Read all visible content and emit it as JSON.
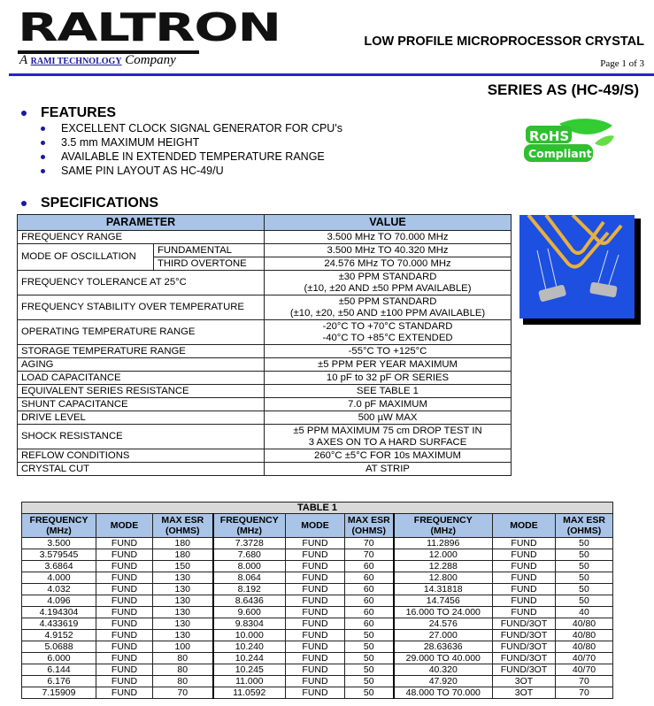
{
  "header": {
    "logo_text": "RALTRON",
    "tagline_prefix": "A",
    "tagline_brand": "RAMI TECHNOLOGY",
    "tagline_suffix": "Company",
    "doc_title": "LOW PROFILE MICROPROCESSOR CRYSTAL",
    "page": "Page 1 of 3",
    "series": "SERIES AS (HC-49/S)"
  },
  "colors": {
    "rule": "#2424c8",
    "table_header": "#a9c4e6",
    "table_title": "#d9d9d9",
    "rohs_green": "#33cc33"
  },
  "features": {
    "heading": "FEATURES",
    "items": [
      "EXCELLENT CLOCK SIGNAL GENERATOR FOR CPU's",
      "3.5 mm MAXIMUM HEIGHT",
      "AVAILABLE IN EXTENDED TEMPERATURE RANGE",
      "SAME PIN LAYOUT AS HC-49/U"
    ]
  },
  "rohs": {
    "line1": "RoHS",
    "line2": "Compliant"
  },
  "specifications": {
    "heading": "SPECIFICATIONS",
    "col_parameter": "PARAMETER",
    "col_value": "VALUE",
    "frequency_range": {
      "label": "FREQUENCY RANGE",
      "value": "3.500 MHz TO 70.000 MHz"
    },
    "mode": {
      "label": "MODE OF OSCILLATION",
      "fund_label": "FUNDAMENTAL",
      "fund_value": "3.500 MHz TO 40.320 MHz",
      "ot_label": "THIRD OVERTONE",
      "ot_value": "24.576 MHz TO 70.000 MHz"
    },
    "rows": [
      {
        "label": "FREQUENCY TOLERANCE AT 25°C",
        "value": [
          "±30 PPM STANDARD",
          "(±10, ±20 AND ±50 PPM AVAILABLE)"
        ]
      },
      {
        "label": "FREQUENCY STABILITY OVER TEMPERATURE",
        "value": [
          "±50 PPM STANDARD",
          "(±10, ±20, ±50 AND ±100 PPM AVAILABLE)"
        ]
      },
      {
        "label": "OPERATING TEMPERATURE RANGE",
        "value": [
          "-20°C TO +70°C STANDARD",
          "-40°C TO +85°C EXTENDED"
        ]
      },
      {
        "label": "STORAGE TEMPERATURE RANGE",
        "value": [
          "-55°C TO +125°C"
        ]
      },
      {
        "label": "AGING",
        "value": [
          "±5 PPM PER YEAR MAXIMUM"
        ]
      },
      {
        "label": "LOAD CAPACITANCE",
        "value": [
          "10 pF to 32 pF OR SERIES"
        ]
      },
      {
        "label": "EQUIVALENT SERIES RESISTANCE",
        "value": [
          "SEE TABLE 1"
        ]
      },
      {
        "label": "SHUNT CAPACITANCE",
        "value": [
          "7.0 pF MAXIMUM"
        ]
      },
      {
        "label": "DRIVE LEVEL",
        "value": [
          "500 µW MAX"
        ]
      },
      {
        "label": "SHOCK RESISTANCE",
        "value": [
          "±5 PPM MAXIMUM 75 cm DROP TEST IN",
          "3 AXES ON TO A HARD SURFACE"
        ]
      },
      {
        "label": "REFLOW CONDITIONS",
        "value": [
          "260°C ±5°C FOR 10s MAXIMUM"
        ]
      },
      {
        "label": "CRYSTAL CUT",
        "value": [
          "AT STRIP"
        ]
      }
    ]
  },
  "table1": {
    "title": "TABLE 1",
    "headers": [
      [
        "FREQUENCY",
        "(MHz)"
      ],
      [
        "MODE"
      ],
      [
        "MAX ESR",
        "(OHMS)"
      ],
      [
        "FREQUENCY",
        "(MHz)"
      ],
      [
        "MODE"
      ],
      [
        "MAX ESR",
        "(OHMS)"
      ],
      [
        "FREQUENCY",
        "(MHz)"
      ],
      [
        "MODE"
      ],
      [
        "MAX ESR",
        "(OHMS)"
      ]
    ],
    "rows": [
      [
        "3.500",
        "FUND",
        "180",
        "7.3728",
        "FUND",
        "70",
        "11.2896",
        "FUND",
        "50"
      ],
      [
        "3.579545",
        "FUND",
        "180",
        "7.680",
        "FUND",
        "70",
        "12.000",
        "FUND",
        "50"
      ],
      [
        "3.6864",
        "FUND",
        "150",
        "8.000",
        "FUND",
        "60",
        "12.288",
        "FUND",
        "50"
      ],
      [
        "4.000",
        "FUND",
        "130",
        "8.064",
        "FUND",
        "60",
        "12.800",
        "FUND",
        "50"
      ],
      [
        "4.032",
        "FUND",
        "130",
        "8.192",
        "FUND",
        "60",
        "14.31818",
        "FUND",
        "50"
      ],
      [
        "4.096",
        "FUND",
        "130",
        "8.6436",
        "FUND",
        "60",
        "14.7456",
        "FUND",
        "50"
      ],
      [
        "4.194304",
        "FUND",
        "130",
        "9.600",
        "FUND",
        "60",
        "16.000 TO 24.000",
        "FUND",
        "40"
      ],
      [
        "4.433619",
        "FUND",
        "130",
        "9.8304",
        "FUND",
        "60",
        "24.576",
        "FUND/3OT",
        "40/80"
      ],
      [
        "4.9152",
        "FUND",
        "130",
        "10.000",
        "FUND",
        "50",
        "27.000",
        "FUND/3OT",
        "40/80"
      ],
      [
        "5.0688",
        "FUND",
        "100",
        "10.240",
        "FUND",
        "50",
        "28.63636",
        "FUND/3OT",
        "40/80"
      ],
      [
        "6.000",
        "FUND",
        "80",
        "10.244",
        "FUND",
        "50",
        "29.000 TO 40.000",
        "FUND/3OT",
        "40/70"
      ],
      [
        "6.144",
        "FUND",
        "80",
        "10.245",
        "FUND",
        "50",
        "40.320",
        "FUND/3OT",
        "40/70"
      ],
      [
        "6.176",
        "FUND",
        "80",
        "11.000",
        "FUND",
        "50",
        "47.920",
        "3OT",
        "70"
      ],
      [
        "7.15909",
        "FUND",
        "70",
        "11.0592",
        "FUND",
        "50",
        "48.000 TO 70.000",
        "3OT",
        "70"
      ]
    ]
  }
}
